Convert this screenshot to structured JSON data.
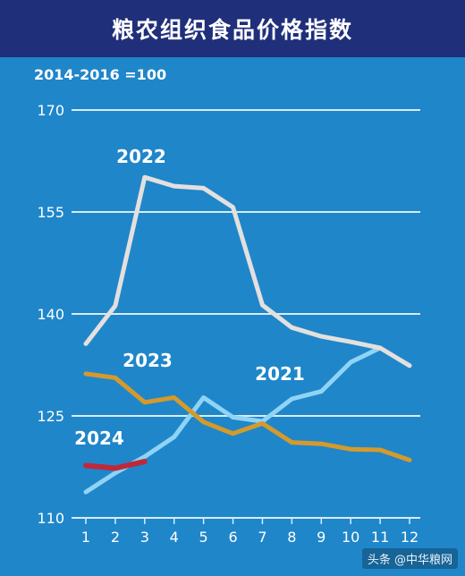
{
  "header": {
    "title": "粮农组织食品价格指数"
  },
  "index_note": "2014-2016 =100",
  "watermark": "头条 @中华粮网",
  "colors": {
    "background": "#1f86c9",
    "header": "#1f2f7a",
    "grid": "#d8ecfa",
    "2022": "#e4e0de",
    "2023": "#d49a2c",
    "2021": "#8fd3f5",
    "2024": "#c0283a"
  },
  "chart_data": {
    "type": "line",
    "x": [
      1,
      2,
      3,
      4,
      5,
      6,
      7,
      8,
      9,
      10,
      11,
      12
    ],
    "xlim": [
      1,
      12
    ],
    "ylim": [
      110,
      170
    ],
    "yticks": [
      110,
      125,
      140,
      155,
      170
    ],
    "grid": true,
    "series": [
      {
        "name": "2022",
        "values": [
          135.6,
          141.2,
          160.1,
          158.8,
          158.5,
          155.7,
          141.3,
          138.0,
          136.7,
          135.9,
          135.0,
          132.4
        ]
      },
      {
        "name": "2023",
        "values": [
          131.2,
          130.6,
          127.0,
          127.7,
          124.1,
          122.4,
          123.9,
          121.1,
          120.9,
          120.1,
          120.0,
          118.5
        ]
      },
      {
        "name": "2021",
        "values": [
          113.8,
          116.6,
          119.0,
          121.9,
          127.7,
          124.8,
          124.2,
          127.5,
          128.6,
          132.9,
          135.0,
          null
        ]
      },
      {
        "name": "2024",
        "values": [
          117.7,
          117.3,
          118.3,
          null,
          null,
          null,
          null,
          null,
          null,
          null,
          null,
          null
        ]
      }
    ]
  }
}
